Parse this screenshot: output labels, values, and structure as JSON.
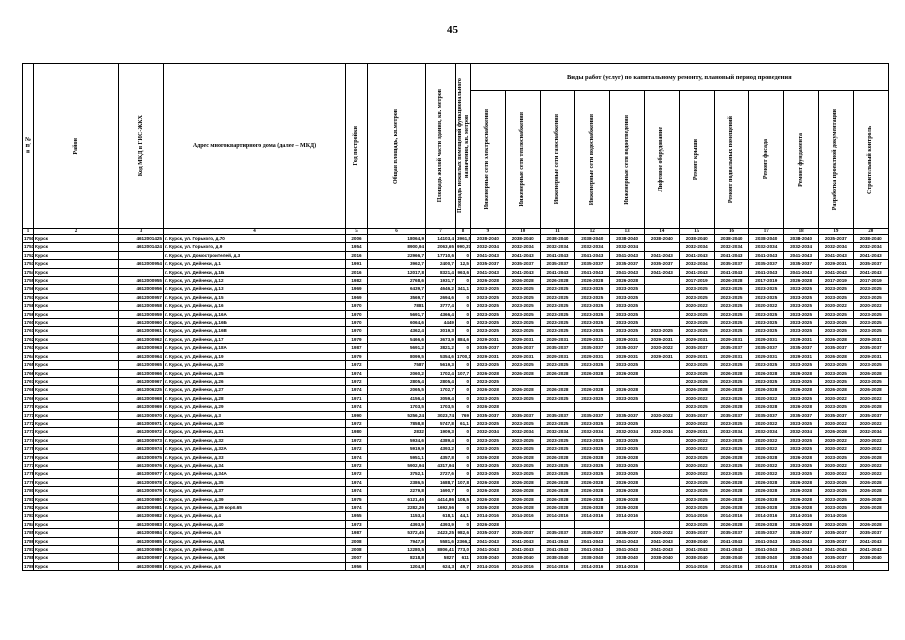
{
  "page_number": "45",
  "headers": {
    "c1": "№ п/п",
    "c2": "Район",
    "c3": "Код МКД в ГИС-ЖКХ",
    "c4": "Адрес многоквартирного дома (далее – МКД)",
    "c5": "Год постройки",
    "c6": "Общая площадь, кв.метров",
    "c7": "Площадь жилой части здания, кв. метров",
    "c8": "Площадь нежилых помещений функционального назначения, кв. метров",
    "group": "Виды работ (услуг) по капитальному ремонту, плановый период проведения",
    "works": [
      "Инженерные сети электроснабжения",
      "Инженерные сети теплоснабжения",
      "Инженерные сети газоснабжения",
      "Инженерные сети водоснабжения",
      "Инженерные сети водоотведения",
      "Лифтовое оборудование",
      "Ремонт крыши",
      "Ремонт подвальных помещений",
      "Ремонт фасада",
      "Ремонт фундамента",
      "Разработка проектной документации",
      "Строительный контроль"
    ],
    "numbers": [
      "1",
      "2",
      "3",
      "4",
      "5",
      "6",
      "7",
      "8",
      "9",
      "10",
      "11",
      "12",
      "13",
      "14",
      "15",
      "16",
      "17",
      "18",
      "19",
      "20"
    ]
  },
  "rows": [
    [
      "1750",
      "Курск",
      "4612001425",
      "г. Курск, ул. Горького, д.70",
      "2006",
      "18064,9",
      "14103,4",
      "3961,5",
      "2038-2040",
      "2038-2040",
      "2038-2040",
      "2038-2040",
      "2038-2040",
      "2038-2040",
      "2038-2040",
      "2038-2040",
      "2038-2040",
      "2038-2040",
      "2035-2037",
      "2038-2040"
    ],
    [
      "1751",
      "Курск",
      "4612001424",
      "г. Курск, ул. Горького, д.9",
      "1954",
      "8900,94",
      "2063,65",
      "990,37",
      "2032-2034",
      "2032-2034",
      "2032-2034",
      "2032-2034",
      "2032-2034",
      "",
      "2032-2034",
      "2032-2034",
      "2032-2034",
      "2032-2034",
      "2032-2034",
      "2032-2034"
    ],
    [
      "1752",
      "Курск",
      "",
      "г. Курск, ул. Домостроителей, д.3",
      "2016",
      "22966,7",
      "17710,6",
      "0",
      "2041-2043",
      "2041-2043",
      "2041-2043",
      "2041-2043",
      "2041-2043",
      "2041-2043",
      "2041-2043",
      "2041-2043",
      "2041-2043",
      "2041-2043",
      "2041-2043",
      "2041-2043"
    ],
    [
      "1753",
      "Курск",
      "4612000954",
      "г. Курск, ул. Дейнеки, д.1",
      "1991",
      "3962,7",
      "2400,7",
      "12,5",
      "2035-2037",
      "2035-2037",
      "2035-2037",
      "2035-2037",
      "2035-2037",
      "2035-2037",
      "2032-2034",
      "2035-2037",
      "2035-2037",
      "2035-2037",
      "2029-2031",
      "2035-2037"
    ],
    [
      "1754",
      "Курск",
      "",
      "г. Курск, ул. Дейнеки, д.1Б",
      "2016",
      "12017,8",
      "8321,4",
      "963,6",
      "2041-2043",
      "2041-2043",
      "2041-2043",
      "2041-2043",
      "2041-2043",
      "2041-2043",
      "2041-2043",
      "2041-2043",
      "2041-2043",
      "2041-2043",
      "2041-2043",
      "2041-2043"
    ],
    [
      "1755",
      "Курск",
      "4612000955",
      "г. Курск, ул. Дейнеки, д.12",
      "1982",
      "2768,6",
      "1931,7",
      "0",
      "2026-2028",
      "2026-2028",
      "2026-2028",
      "2026-2028",
      "2026-2028",
      "",
      "2017-2019",
      "2026-2028",
      "2017-2019",
      "2026-2028",
      "2017-2019",
      "2017-2019"
    ],
    [
      "1756",
      "Курск",
      "4612000956",
      "г. Курск, ул. Дейнеки, д.13",
      "1969",
      "6439,7",
      "4646,2",
      "341,1",
      "2023-2025",
      "2023-2025",
      "2023-2025",
      "2023-2025",
      "2023-2025",
      "",
      "2023-2025",
      "2023-2025",
      "2023-2025",
      "2023-2025",
      "2023-2025",
      "2023-2025"
    ],
    [
      "1757",
      "Курск",
      "4612000957",
      "г. Курск, ул. Дейнеки, д.15",
      "1969",
      "3569,7",
      "2694,6",
      "0",
      "2023-2025",
      "2023-2025",
      "2023-2025",
      "2023-2025",
      "2023-2025",
      "",
      "2023-2025",
      "2023-2025",
      "2023-2025",
      "2023-2025",
      "2023-2025",
      "2023-2025"
    ],
    [
      "1758",
      "Курск",
      "4612000958",
      "г. Курск, ул. Дейнеки, д.16",
      "1970",
      "7881",
      "3777,4",
      "0",
      "2023-2025",
      "2023-2025",
      "2023-2025",
      "2023-2025",
      "2023-2025",
      "",
      "2020-2022",
      "2023-2025",
      "2020-2022",
      "2023-2025",
      "2020-2022",
      "2020-2022"
    ],
    [
      "1759",
      "Курск",
      "4612000959",
      "г. Курск, ул. Дейнеки, д.16А",
      "1970",
      "5691,7",
      "4366,4",
      "0",
      "2023-2025",
      "2023-2025",
      "2023-2025",
      "2023-2025",
      "2023-2025",
      "",
      "2023-2025",
      "2023-2025",
      "2023-2025",
      "2023-2025",
      "2023-2025",
      "2023-2025"
    ],
    [
      "1760",
      "Курск",
      "4612000960",
      "г. Курск, ул. Дейнеки, д.16Б",
      "1970",
      "6064,6",
      "4449",
      "0",
      "2023-2025",
      "2023-2025",
      "2023-2025",
      "2023-2025",
      "2023-2025",
      "",
      "2023-2025",
      "2023-2025",
      "2023-2025",
      "2023-2025",
      "2023-2025",
      "2023-2025"
    ],
    [
      "1761",
      "Курск",
      "4612000961",
      "г. Курск, ул. Дейнеки, д.16В",
      "1970",
      "4362,4",
      "3019,3",
      "0",
      "2023-2025",
      "2023-2025",
      "2023-2025",
      "2023-2025",
      "2023-2025",
      "2023-2025",
      "2023-2025",
      "2023-2025",
      "2023-2025",
      "2023-2025",
      "2023-2025",
      "2023-2025"
    ],
    [
      "1762",
      "Курск",
      "4612000962",
      "г. Курск, ул. Дейнеки, д.17",
      "1979",
      "5466,6",
      "3673,9",
      "884,6",
      "2029-2031",
      "2029-2031",
      "2029-2031",
      "2029-2031",
      "2029-2031",
      "2029-2031",
      "2029-2031",
      "2029-2031",
      "2029-2031",
      "2029-2031",
      "2026-2028",
      "2029-2031"
    ],
    [
      "1763",
      "Курск",
      "4612000963",
      "г. Курск, ул. Дейнеки, д.18А",
      "1987",
      "5691,2",
      "3821,2",
      "0",
      "2035-2037",
      "2035-2037",
      "2035-2037",
      "2035-2037",
      "2035-2037",
      "2020-2022",
      "2035-2037",
      "2035-2037",
      "2035-2037",
      "2035-2037",
      "2035-2037",
      "2035-2037"
    ],
    [
      "1764",
      "Курск",
      "4612000964",
      "г. Курск, ул. Дейнеки, д.19",
      "1979",
      "8099,5",
      "5354,6",
      "1700,1",
      "2029-2031",
      "2029-2031",
      "2029-2031",
      "2029-2031",
      "2029-2031",
      "2029-2031",
      "2029-2031",
      "2029-2031",
      "2029-2031",
      "2029-2031",
      "2026-2028",
      "2029-2031"
    ],
    [
      "1765",
      "Курск",
      "4612000965",
      "г. Курск, ул. Дейнеки, д.20",
      "1972",
      "7587",
      "5619,3",
      "0",
      "2023-2025",
      "2023-2025",
      "2023-2025",
      "2023-2025",
      "2023-2025",
      "",
      "2023-2025",
      "2023-2025",
      "2023-2025",
      "2023-2025",
      "2023-2025",
      "2023-2025"
    ],
    [
      "1766",
      "Курск",
      "4612000966",
      "г. Курск, ул. Дейнеки, д.25",
      "1974",
      "2060,2",
      "1702,4",
      "107,7",
      "2026-2028",
      "2026-2028",
      "2026-2028",
      "2026-2028",
      "2026-2028",
      "",
      "2023-2025",
      "2026-2028",
      "2026-2028",
      "2026-2028",
      "2023-2025",
      "2026-2028"
    ],
    [
      "1767",
      "Курск",
      "4612000967",
      "г. Курск, ул. Дейнеки, д.26",
      "1972",
      "2805,4",
      "2805,4",
      "0",
      "2023-2025",
      "",
      "",
      "",
      "",
      "",
      "2023-2025",
      "2023-2025",
      "2023-2025",
      "2023-2025",
      "2023-2025",
      "2023-2025"
    ],
    [
      "1768",
      "Курск",
      "4612006225",
      "г. Курск, ул. Дейнеки, д.27",
      "1974",
      "2065,5",
      "1702,7",
      "0",
      "2026-2028",
      "2026-2028",
      "2026-2028",
      "2026-2028",
      "2026-2028",
      "",
      "2026-2028",
      "2026-2028",
      "2026-2028",
      "2026-2028",
      "2026-2028",
      "2026-2028"
    ],
    [
      "1769",
      "Курск",
      "4612000968",
      "г. Курск, ул. Дейнеки, д.28",
      "1971",
      "4156,4",
      "3059,4",
      "0",
      "2023-2025",
      "2023-2025",
      "2023-2025",
      "2023-2025",
      "2023-2025",
      "",
      "2020-2022",
      "2023-2025",
      "2020-2022",
      "2023-2025",
      "2020-2022",
      "2020-2022"
    ],
    [
      "1770",
      "Курск",
      "4612000969",
      "г. Курск, ул. Дейнеки, д.29",
      "1974",
      "1703,5",
      "1703,5",
      "0",
      "2026-2028",
      "",
      "",
      "",
      "",
      "",
      "2023-2025",
      "2026-2028",
      "2026-2028",
      "2026-2028",
      "2023-2025",
      "2026-2028"
    ],
    [
      "1771",
      "Курск",
      "4612000970",
      "г. Курск, ул. Дейнеки, д.3",
      "1990",
      "5256,24",
      "3023,74",
      "769",
      "2035-2037",
      "2035-2037",
      "2035-2037",
      "2035-2037",
      "2035-2037",
      "2020-2022",
      "2035-2037",
      "2035-2037",
      "2035-2037",
      "2035-2037",
      "2035-2037",
      "2035-2037"
    ],
    [
      "1772",
      "Курск",
      "4612000971",
      "г. Курск, ул. Дейнеки, д.30",
      "1972",
      "7858,8",
      "5747,8",
      "61,1",
      "2023-2025",
      "2023-2025",
      "2023-2025",
      "2023-2025",
      "2023-2025",
      "",
      "2020-2022",
      "2023-2025",
      "2020-2022",
      "2023-2025",
      "2020-2022",
      "2020-2022"
    ],
    [
      "1773",
      "Курск",
      "4612000972",
      "г. Курск, ул. Дейнеки, д.31",
      "1980",
      "2832",
      "1909,3",
      "0",
      "2032-2034",
      "2032-2034",
      "2032-2034",
      "2032-2034",
      "2032-2034",
      "2032-2034",
      "2029-2031",
      "2032-2034",
      "2032-2034",
      "2032-2034",
      "2026-2028",
      "2032-2034"
    ],
    [
      "1774",
      "Курск",
      "4612000973",
      "г. Курск, ул. Дейнеки, д.32",
      "1972",
      "5934,6",
      "4389,4",
      "0",
      "2023-2025",
      "2023-2025",
      "2023-2025",
      "2023-2025",
      "2023-2025",
      "",
      "2020-2022",
      "2023-2025",
      "2020-2022",
      "2023-2025",
      "2020-2022",
      "2020-2022"
    ],
    [
      "1775",
      "Курск",
      "4612000974",
      "г. Курск, ул. Дейнеки, д.32А",
      "1972",
      "5919,9",
      "4393,2",
      "0",
      "2023-2025",
      "2023-2025",
      "2023-2025",
      "2023-2025",
      "2023-2025",
      "",
      "2020-2022",
      "2023-2025",
      "2020-2022",
      "2023-2025",
      "2020-2022",
      "2020-2022"
    ],
    [
      "1776",
      "Курск",
      "4612000975",
      "г. Курск, ул. Дейнеки, д.33",
      "1974",
      "5951,1",
      "4357,8",
      "0",
      "2026-2028",
      "2026-2028",
      "2026-2028",
      "2026-2028",
      "2026-2028",
      "",
      "2023-2025",
      "2026-2028",
      "2026-2028",
      "2026-2028",
      "2023-2025",
      "2026-2028"
    ],
    [
      "1777",
      "Курск",
      "4612000976",
      "г. Курск, ул. Дейнеки, д.34",
      "1972",
      "5902,94",
      "4317,94",
      "0",
      "2023-2025",
      "2023-2025",
      "2023-2025",
      "2023-2025",
      "2023-2025",
      "",
      "2020-2022",
      "2023-2025",
      "2020-2022",
      "2023-2025",
      "2020-2022",
      "2020-2022"
    ],
    [
      "1778",
      "Курск",
      "4612000977",
      "г. Курск, ул. Дейнеки, д.34А",
      "1972",
      "3752,1",
      "2727,6",
      "0",
      "2023-2025",
      "2023-2025",
      "2023-2025",
      "2023-2025",
      "2023-2025",
      "",
      "2020-2022",
      "2023-2025",
      "2020-2022",
      "2023-2025",
      "2020-2022",
      "2020-2022"
    ],
    [
      "1779",
      "Курск",
      "4612000978",
      "г. Курск, ул. Дейнеки, д.35",
      "1974",
      "2386,5",
      "1688,7",
      "107,8",
      "2026-2028",
      "2026-2028",
      "2026-2028",
      "2026-2028",
      "2026-2028",
      "",
      "2023-2025",
      "2026-2028",
      "2026-2028",
      "2026-2028",
      "2023-2025",
      "2026-2028"
    ],
    [
      "1780",
      "Курск",
      "4612000979",
      "г. Курск, ул. Дейнеки, д.37",
      "1974",
      "2279,8",
      "1690,7",
      "0",
      "2026-2028",
      "2026-2028",
      "2026-2028",
      "2026-2028",
      "2026-2028",
      "",
      "2023-2025",
      "2026-2028",
      "2026-2028",
      "2026-2028",
      "2023-2025",
      "2026-2028"
    ],
    [
      "1781",
      "Курск",
      "4612000980",
      "г. Курск, ул. Дейнеки, д.39",
      "1975",
      "6121,46",
      "4414,86",
      "108,5",
      "2026-2028",
      "2026-2028",
      "2026-2028",
      "2026-2028",
      "2026-2028",
      "",
      "2023-2025",
      "2026-2028",
      "2026-2028",
      "2026-2028",
      "2023-2025",
      "2026-2028"
    ],
    [
      "1782",
      "Курск",
      "4612000981",
      "г. Курск, ул. Дейнеки, д.39 корп.65",
      "1974",
      "2282,26",
      "1692,56",
      "0",
      "2026-2028",
      "2026-2028",
      "2026-2028",
      "2026-2028",
      "2026-2028",
      "",
      "2023-2025",
      "2026-2028",
      "2026-2028",
      "2026-2028",
      "2023-2025",
      "2026-2028"
    ],
    [
      "1783",
      "Курск",
      "4612000982",
      "г. Курск, ул. Дейнеки, д.4",
      "1955",
      "1153,4",
      "618,1",
      "44,1",
      "2014-2016",
      "2014-2016",
      "2014-2016",
      "2014-2016",
      "2014-2016",
      "",
      "2014-2016",
      "2014-2016",
      "2014-2016",
      "2014-2016",
      "2014-2016",
      ""
    ],
    [
      "1784",
      "Курск",
      "4612000983",
      "г. Курск, ул. Дейнеки, д.40",
      "1973",
      "4393,9",
      "4393,9",
      "0",
      "2026-2028",
      "",
      "",
      "",
      "",
      "",
      "2023-2025",
      "2026-2028",
      "2026-2028",
      "2026-2028",
      "2023-2025",
      "2026-2028"
    ],
    [
      "1785",
      "Курск",
      "4612000984",
      "г. Курск, ул. Дейнеки, д.5",
      "1987",
      "5372,45",
      "2423,25",
      "982,6",
      "2035-2037",
      "2035-2037",
      "2035-2037",
      "2035-2037",
      "2035-2037",
      "2020-2022",
      "2035-2037",
      "2035-2037",
      "2035-2037",
      "2035-2037",
      "2035-2037",
      "2035-2037"
    ],
    [
      "1786",
      "Курск",
      "4612000985",
      "г. Курск, ул. Дейнеки, д.5Д",
      "2008",
      "7947,8",
      "5581,6",
      "2366,2",
      "2041-2043",
      "2041-2043",
      "2041-2043",
      "2041-2043",
      "2041-2043",
      "2041-2043",
      "2038-2040",
      "2041-2043",
      "2041-2043",
      "2041-2043",
      "2035-2037",
      "2041-2043"
    ],
    [
      "1787",
      "Курск",
      "4612000986",
      "г. Курск, ул. Дейнеки, д.5Е",
      "2008",
      "12280,5",
      "8806,41",
      "773,0",
      "2041-2043",
      "2041-2043",
      "2041-2043",
      "2041-2043",
      "2041-2043",
      "2041-2043",
      "2041-2043",
      "2041-2043",
      "2041-2043",
      "2041-2043",
      "2041-2043",
      "2041-2043"
    ],
    [
      "1788",
      "Курск",
      "4612000987",
      "г. Курск, ул. Дейнеки, д.5Ж",
      "2007",
      "8218,8",
      "5827",
      "611",
      "2038-2040",
      "2038-2040",
      "2038-2040",
      "2038-2040",
      "2038-2040",
      "2038-2040",
      "2038-2040",
      "2038-2040",
      "2038-2040",
      "2038-2040",
      "2035-2037",
      "2038-2040"
    ],
    [
      "1789",
      "Курск",
      "4612000988",
      "г. Курск, ул. Дейнеки, д.6",
      "1956",
      "1204,8",
      "624,3",
      "49,7",
      "2014-2016",
      "2014-2016",
      "2014-2016",
      "2014-2016",
      "2014-2016",
      "",
      "2014-2016",
      "2014-2016",
      "2014-2016",
      "2014-2016",
      "2014-2016",
      ""
    ]
  ]
}
